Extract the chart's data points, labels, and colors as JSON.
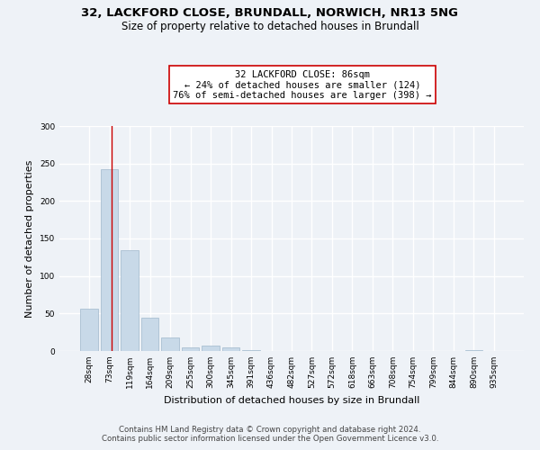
{
  "title1": "32, LACKFORD CLOSE, BRUNDALL, NORWICH, NR13 5NG",
  "title2": "Size of property relative to detached houses in Brundall",
  "xlabel": "Distribution of detached houses by size in Brundall",
  "ylabel": "Number of detached properties",
  "categories": [
    "28sqm",
    "73sqm",
    "119sqm",
    "164sqm",
    "209sqm",
    "255sqm",
    "300sqm",
    "345sqm",
    "391sqm",
    "436sqm",
    "482sqm",
    "527sqm",
    "572sqm",
    "618sqm",
    "663sqm",
    "708sqm",
    "754sqm",
    "799sqm",
    "844sqm",
    "890sqm",
    "935sqm"
  ],
  "values": [
    57,
    242,
    135,
    44,
    18,
    5,
    7,
    5,
    1,
    0,
    0,
    0,
    0,
    0,
    0,
    0,
    0,
    0,
    0,
    1,
    0
  ],
  "bar_color": "#c8d9e8",
  "bar_edge_color": "#a0b8cc",
  "bar_linewidth": 0.5,
  "vline_x": 1.1,
  "vline_color": "#cc0000",
  "vline_linewidth": 1.0,
  "annotation_line1": "32 LACKFORD CLOSE: 86sqm",
  "annotation_line2": "← 24% of detached houses are smaller (124)",
  "annotation_line3": "76% of semi-detached houses are larger (398) →",
  "annotation_box_color": "white",
  "annotation_border_color": "#cc0000",
  "ylim": [
    0,
    300
  ],
  "yticks": [
    0,
    50,
    100,
    150,
    200,
    250,
    300
  ],
  "footer": "Contains HM Land Registry data © Crown copyright and database right 2024.\nContains public sector information licensed under the Open Government Licence v3.0.",
  "bg_color": "#eef2f7",
  "plot_bg_color": "#eef2f7",
  "grid_color": "white",
  "title1_fontsize": 9.5,
  "title2_fontsize": 8.5,
  "xlabel_fontsize": 8,
  "ylabel_fontsize": 8,
  "tick_fontsize": 6.5,
  "annotation_fontsize": 7.5,
  "footer_fontsize": 6.2
}
